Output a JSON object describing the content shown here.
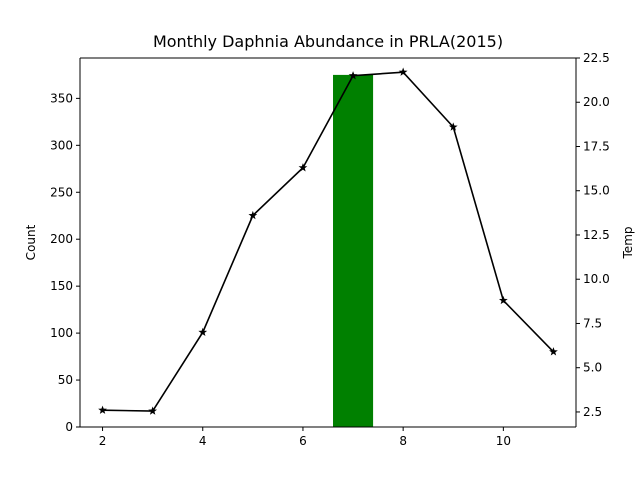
{
  "chart_data": {
    "type": "bar",
    "title": "Monthly Daphnia Abundance in PRLA(2015)",
    "xlabel": "",
    "ylabel": "Count",
    "y2label": "Temp",
    "xlim": [
      1.55,
      11.45
    ],
    "ylim": [
      0,
      393
    ],
    "y2lim": [
      1.65,
      22.5
    ],
    "x_ticks": [
      2,
      4,
      6,
      8,
      10
    ],
    "y_ticks": [
      0,
      50,
      100,
      150,
      200,
      250,
      300,
      350
    ],
    "y2_ticks": [
      2.5,
      5.0,
      7.5,
      10.0,
      12.5,
      15.0,
      17.5,
      20.0,
      22.5
    ],
    "grid": false,
    "colors": {
      "bar": "#008000",
      "line": "#000000"
    },
    "series": [
      {
        "kind": "bar",
        "axis": "left",
        "x": [
          2,
          3,
          4,
          5,
          6,
          7,
          8,
          9,
          10,
          11
        ],
        "values": [
          0,
          0,
          0,
          0,
          0,
          375,
          0,
          0,
          0,
          0
        ]
      },
      {
        "kind": "line",
        "axis": "right",
        "marker": "star",
        "x": [
          2,
          3,
          4,
          5,
          6,
          7,
          8,
          9,
          10,
          11
        ],
        "values": [
          2.6,
          2.55,
          7.0,
          13.6,
          16.3,
          21.5,
          21.7,
          18.6,
          8.8,
          5.9
        ]
      }
    ]
  }
}
